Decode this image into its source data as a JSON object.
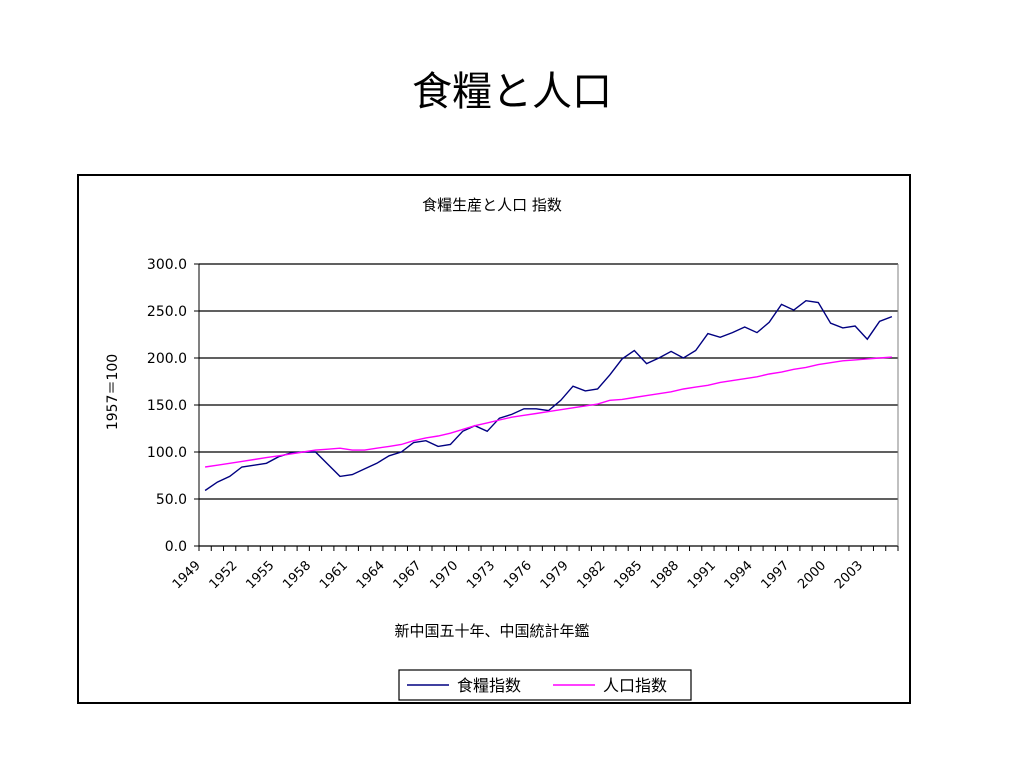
{
  "slide": {
    "title": "食糧と人口"
  },
  "chart_data": {
    "type": "line",
    "title": "食糧生産と人口  指数",
    "ylabel": "1957＝100",
    "xlabel": "新中国五十年、中国統計年鑑",
    "ylim": [
      0,
      300
    ],
    "yticks": [
      "0.0",
      "50.0",
      "100.0",
      "150.0",
      "200.0",
      "250.0",
      "300.0"
    ],
    "ytick_values": [
      0,
      50,
      100,
      150,
      200,
      250,
      300
    ],
    "x": [
      1949,
      1950,
      1951,
      1952,
      1953,
      1954,
      1955,
      1956,
      1957,
      1958,
      1959,
      1960,
      1961,
      1962,
      1963,
      1964,
      1965,
      1966,
      1967,
      1968,
      1969,
      1970,
      1971,
      1972,
      1973,
      1974,
      1975,
      1976,
      1977,
      1978,
      1979,
      1980,
      1981,
      1982,
      1983,
      1984,
      1985,
      1986,
      1987,
      1988,
      1989,
      1990,
      1991,
      1992,
      1993,
      1994,
      1995,
      1996,
      1997,
      1998,
      1999,
      2000,
      2001,
      2002,
      2003,
      2004,
      2005
    ],
    "xtick_labels": [
      "1949",
      "1952",
      "1955",
      "1958",
      "1961",
      "1964",
      "1967",
      "1970",
      "1973",
      "1976",
      "1979",
      "1982",
      "1985",
      "1988",
      "1991",
      "1994",
      "1997",
      "2000",
      "2003"
    ],
    "grid": true,
    "legend_position": "bottom",
    "series": [
      {
        "name": "食糧指数",
        "color": "#000080",
        "values": [
          59,
          68,
          74,
          84,
          86,
          88,
          95,
          99,
          100,
          100,
          87,
          74,
          76,
          82,
          88,
          96,
          100,
          110,
          112,
          106,
          108,
          122,
          128,
          122,
          136,
          140,
          146,
          146,
          144,
          155,
          170,
          165,
          167,
          182,
          199,
          208,
          194,
          200,
          207,
          200,
          208,
          226,
          222,
          227,
          233,
          227,
          238,
          257,
          251,
          261,
          259,
          237,
          232,
          234,
          220,
          239,
          244
        ]
      },
      {
        "name": "人口指数",
        "color": "#ff00ff",
        "values": [
          84,
          86,
          88,
          90,
          92,
          94,
          96,
          98,
          100,
          102,
          103,
          104,
          102,
          102,
          104,
          106,
          108,
          112,
          115,
          117,
          120,
          124,
          128,
          131,
          134,
          137,
          139,
          141,
          143,
          145,
          147,
          149,
          151,
          155,
          156,
          158,
          160,
          162,
          164,
          167,
          169,
          171,
          174,
          176,
          178,
          180,
          183,
          185,
          188,
          190,
          193,
          195,
          197,
          198,
          199,
          200,
          201
        ]
      }
    ]
  }
}
